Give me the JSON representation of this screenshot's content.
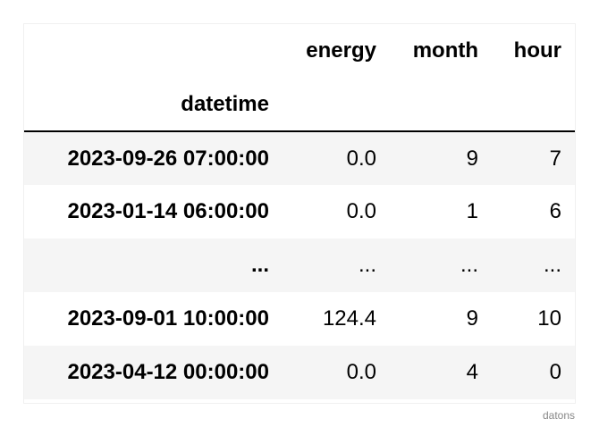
{
  "table": {
    "columns": [
      "energy",
      "month",
      "hour"
    ],
    "index_name": "datetime",
    "rows": [
      {
        "index": "2023-09-26 07:00:00",
        "cells": [
          "0.0",
          "9",
          "7"
        ]
      },
      {
        "index": "2023-01-14 06:00:00",
        "cells": [
          "0.0",
          "1",
          "6"
        ]
      },
      {
        "index": "...",
        "cells": [
          "...",
          "...",
          "..."
        ]
      },
      {
        "index": "2023-09-01 10:00:00",
        "cells": [
          "124.4",
          "9",
          "10"
        ]
      },
      {
        "index": "2023-04-12 00:00:00",
        "cells": [
          "0.0",
          "4",
          "0"
        ]
      }
    ]
  },
  "footer": "datons"
}
